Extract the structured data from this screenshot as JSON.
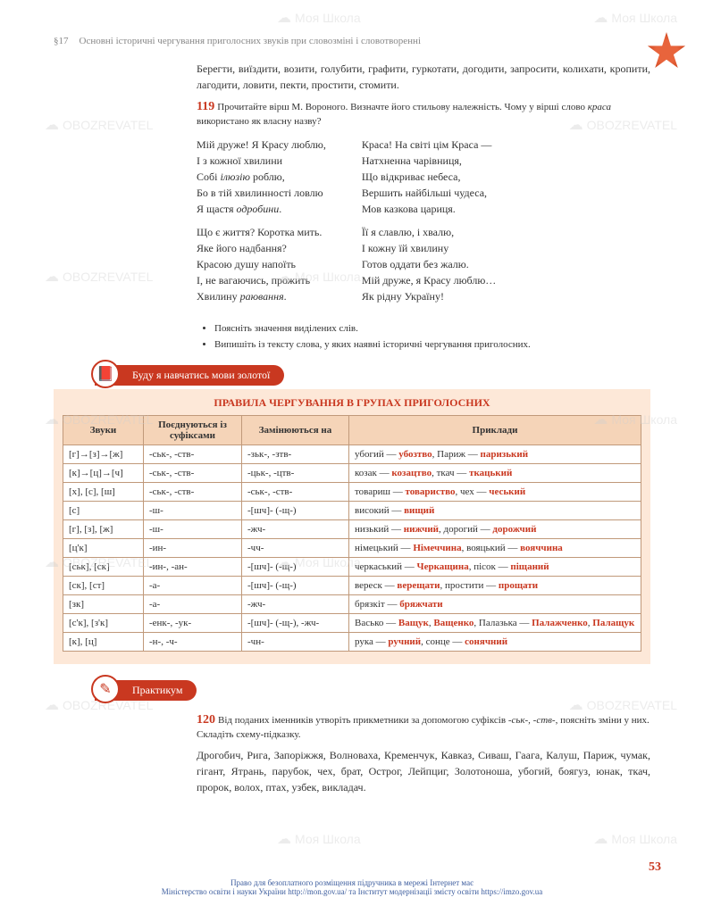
{
  "header": {
    "section": "§17",
    "title": "Основні історичні чергування приголосних звуків при словозміні і словотворенні"
  },
  "watermarks": {
    "obozrevatel": "OBOZREVATEL",
    "moyashkola": "Моя Школа"
  },
  "intro_paragraph": "Берегти, виїздити, возити, голубити, графити, гуркотати, догодити, запросити, колихати, кропити, лагодити, ловити, пекти, простити, стомити.",
  "ex119": {
    "num": "119",
    "intro": "Прочитайте вірш М. Вороного. Визначте його стильову належність. Чому у вірші слово ",
    "intro_italic": "краса",
    "intro_end": " використано як власну назву?"
  },
  "poem": {
    "left": [
      [
        "Мій друже! Я Красу люблю,",
        "І з кожної хвилини",
        "Собі ілюзію роблю,",
        "Бо в тій хвилинності ловлю",
        "Я щастя одробини."
      ],
      [
        "Що є життя? Коротка мить.",
        "Яке його надбання?",
        "Красою душу напоїть",
        "І, не вагаючись, прожить",
        "Хвилину раювання."
      ]
    ],
    "right": [
      [
        "Краса! На світі цім Краса —",
        "Натхненна чарівниця,",
        "Що відкриває небеса,",
        "Вершить найбільші чудеса,",
        "Мов казкова цариця."
      ],
      [
        "Її я славлю, і хвалю,",
        "І кожну їй хвилину",
        "Готов оддати без жалю.",
        "Мій друже, я Красу люблю…",
        "Як рідну Україну!"
      ]
    ]
  },
  "bullets": [
    "Поясніть значення виділених слів.",
    "Випишіть із тексту слова, у яких наявні історичні чергування приголосних."
  ],
  "banner1": "Буду я навчатись мови золотої",
  "table": {
    "title": "ПРАВИЛА ЧЕРГУВАННЯ В ГРУПАХ ПРИГОЛОСНИХ",
    "columns": [
      "Звуки",
      "Поєднуються із суфіксами",
      "Замінюються на",
      "Приклади"
    ],
    "rows": [
      [
        "[г]→[з]→[ж]",
        "-ськ-, -ств-",
        "-зьк-, -зтв-",
        "убогий — убозтво,  Париж — паризький"
      ],
      [
        "[к]→[ц]→[ч]",
        "-ськ-, -ств-",
        "-цьк-, -цтв-",
        "козак — козацтво, ткач — ткацький"
      ],
      [
        "[х], [с], [ш]",
        "-ськ-, -ств-",
        "-ськ-, -ств-",
        "товариш — товариство, чех — чеський"
      ],
      [
        "[с]",
        "-ш-",
        "-[шч]- (-щ-)",
        "високий — вищий"
      ],
      [
        "[г], [з], [ж]",
        "-ш-",
        "-жч-",
        "низький — нижчий,  дорогий — дорожчий"
      ],
      [
        "[ц'к]",
        "-ин-",
        "-чч-",
        "німецький — Німеччина,  вояцький — вояччина"
      ],
      [
        "[ськ], [ск]",
        "-ин-, -ан-",
        "-[шч]- (-щ-)",
        "черкаський — Черкащина,  пісок — піщаний"
      ],
      [
        "[ск], [ст]",
        "-а-",
        "-[шч]- (-щ-)",
        "вереск — верещати,  простити — прощати"
      ],
      [
        "[зк]",
        "-а-",
        "-жч-",
        "брязкіт — бряжчати"
      ],
      [
        "[с'к], [з'к]",
        "-енк-, -ук-",
        "-[шч]- (-щ-), -жч-",
        "Васько — Ващук, Ващенко, Палазька — Палажченко, Палащук"
      ],
      [
        "[к], [ц]",
        "-н-, -ч-",
        "-чн-",
        "рука — ручний, сонце — сонячний"
      ]
    ]
  },
  "banner2": "Практикум",
  "ex120": {
    "num": "120",
    "intro": "Від поданих іменників утворіть прикметники за допомогою суфіксів ",
    "intro_italic": "-ськ-, -ств-",
    "intro_end": ", поясніть зміни у них. Складіть схему-підказку.",
    "content": "Дрогобич, Рига, Запоріжжя, Волноваха, Кременчук, Кавказ, Сиваш, Гаага, Калуш, Париж, чумак, гігант, Ятрань, парубок, чех, брат, Острог, Лейпциг, Золотоноша, убогий, боягуз, юнак, ткач, пророк, волох, птах, узбек, викладач."
  },
  "footer": {
    "line1": "Право для безоплатного розміщення підручника в мережі Інтернет має",
    "line2": "Міністерство освіти і науки України http://mon.gov.ua/ та Інститут модернізації змісту освіти https://imzo.gov.ua"
  },
  "page_num": "53"
}
